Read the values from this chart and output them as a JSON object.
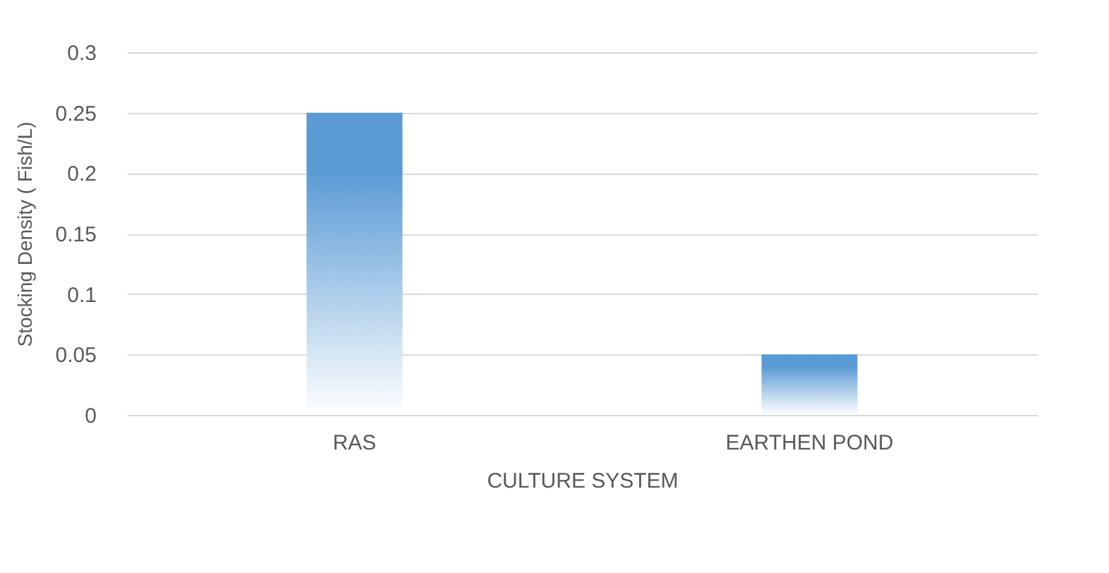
{
  "chart_data": {
    "type": "bar",
    "xlabel": "CULTURE SYSTEM",
    "ylabel": "Stocking Density ( Fish/L)",
    "categories": [
      "RAS",
      "EARTHEN POND"
    ],
    "values": [
      0.25,
      0.05
    ],
    "color": "#5b9bd5",
    "ylim": [
      0,
      0.3
    ],
    "yticks": [
      0,
      0.05,
      0.1,
      0.15,
      0.2,
      0.25,
      0.3
    ],
    "grid": "y"
  }
}
